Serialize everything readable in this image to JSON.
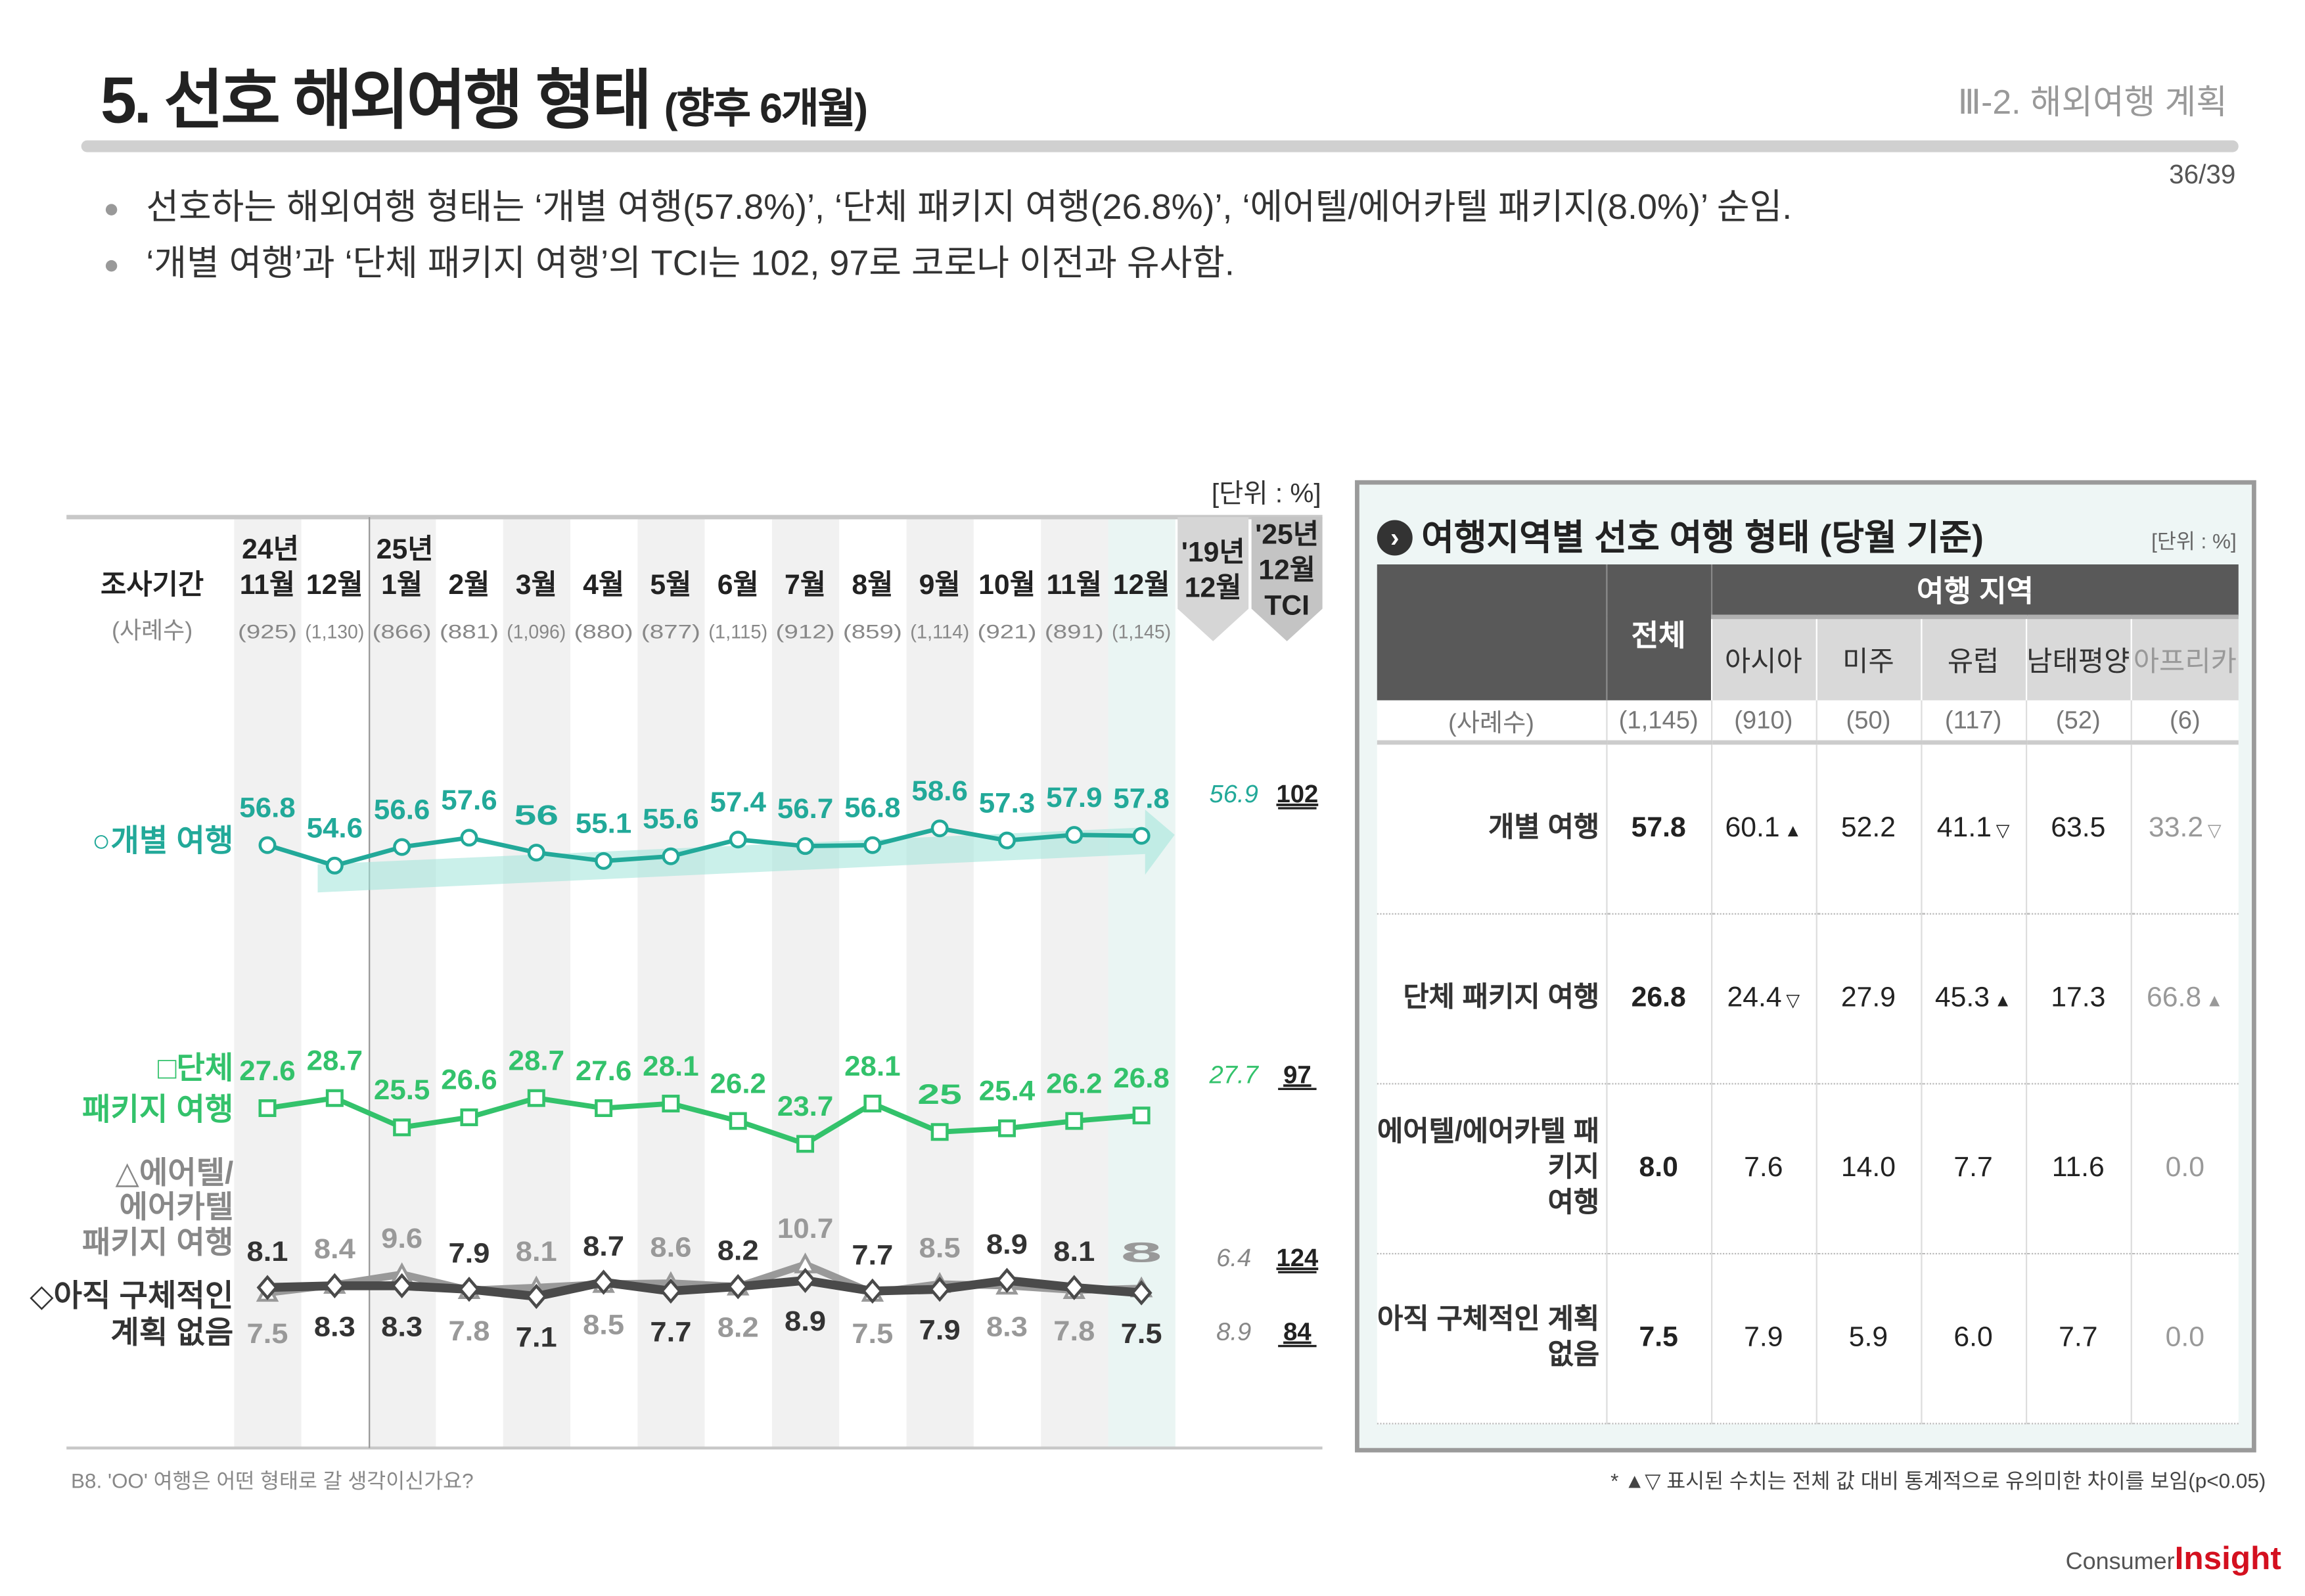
{
  "header": {
    "title": "5. 선호 해외여행 형태",
    "title_sub": "(향후 6개월)",
    "section": "Ⅲ-2. 해외여행 계획",
    "page": "36/39"
  },
  "bullets": [
    "선호하는 해외여행 형태는 ‘개별 여행(57.8%)’, ‘단체 패키지 여행(26.8%)’, ‘에어텔/에어카텔 패키지(8.0%)’ 순임.",
    "‘개별 여행’과 ‘단체 패키지 여행’의 TCI는 102, 97로 코로나 이전과 유사함."
  ],
  "chart_data": {
    "type": "line",
    "unit": "[단위 : %]",
    "row_label": "조사기간",
    "n_label": "(사례수)",
    "years": [
      "24년",
      "",
      "25년",
      "",
      "",
      "",
      "",
      "",
      "",
      "",
      "",
      "",
      "",
      ""
    ],
    "categories": [
      "11월",
      "12월",
      "1월",
      "2월",
      "3월",
      "4월",
      "5월",
      "6월",
      "7월",
      "8월",
      "9월",
      "10월",
      "11월",
      "12월"
    ],
    "n": [
      "(925)",
      "(1,130)",
      "(866)",
      "(881)",
      "(1,096)",
      "(880)",
      "(877)",
      "(1,115)",
      "(912)",
      "(859)",
      "(1,114)",
      "(921)",
      "(891)",
      "(1,145)"
    ],
    "ref_header": [
      "'19년",
      "12월"
    ],
    "tci_header": [
      "'25년",
      "12월",
      "TCI"
    ],
    "series": [
      {
        "name": "○개별 여행",
        "values": [
          56.8,
          54.6,
          56.6,
          57.6,
          56.0,
          55.1,
          55.6,
          57.4,
          56.7,
          56.8,
          58.6,
          57.3,
          57.9,
          57.8
        ],
        "ref_2019": "56.9",
        "tci": "102",
        "color": "#22a999",
        "marker": "circle"
      },
      {
        "name": "□단체 패키지 여행",
        "values": [
          27.6,
          28.7,
          25.5,
          26.6,
          28.7,
          27.6,
          28.1,
          26.2,
          23.7,
          28.1,
          25.0,
          25.4,
          26.2,
          26.8
        ],
        "ref_2019": "27.7",
        "tci": "97",
        "color": "#33c26b",
        "marker": "square"
      },
      {
        "name": "△에어텔/ 에어카텔 패키지 여행",
        "values": [
          7.5,
          8.4,
          9.6,
          7.8,
          8.1,
          8.5,
          8.6,
          8.2,
          10.7,
          7.5,
          8.5,
          8.3,
          7.8,
          8.0
        ],
        "ref_2019": "6.4",
        "tci": "124",
        "color": "#999999",
        "marker": "triangle"
      },
      {
        "name": "◇아직 구체적인 계획 없음",
        "values": [
          8.1,
          8.3,
          8.3,
          7.9,
          7.1,
          8.7,
          7.7,
          8.2,
          8.9,
          7.7,
          7.9,
          8.9,
          8.1,
          7.5
        ],
        "ref_2019": "8.9",
        "tci": "84",
        "color": "#4a4a4a",
        "marker": "diamond"
      }
    ],
    "question": "B8. 'OO' 여행은 어떤 형태로 갈 생각이신가요?"
  },
  "panel": {
    "title": "여행지역별 선호 여행 형태 (당월 기준)",
    "unit": "[단위 : %]",
    "total": "전체",
    "region_group": "여행 지역",
    "regions": [
      "아시아",
      "미주",
      "유럽",
      "남태평양",
      "아프리카"
    ],
    "n_label": "(사례수)",
    "n": [
      "(1,145)",
      "(910)",
      "(50)",
      "(117)",
      "(52)",
      "(6)"
    ],
    "rows": [
      {
        "label": "개별 여행",
        "values": [
          "57.8",
          "60.1",
          "52.2",
          "41.1",
          "63.5",
          "33.2"
        ],
        "marks": [
          "",
          "▲",
          "",
          "▽",
          "",
          "▽"
        ]
      },
      {
        "label": "단체 패키지 여행",
        "values": [
          "26.8",
          "24.4",
          "27.9",
          "45.3",
          "17.3",
          "66.8"
        ],
        "marks": [
          "",
          "▽",
          "",
          "▲",
          "",
          "▲"
        ]
      },
      {
        "label": "에어텔/에어카텔 패키지 여행",
        "values": [
          "8.0",
          "7.6",
          "14.0",
          "7.7",
          "11.6",
          "0.0"
        ],
        "marks": [
          "",
          "",
          "",
          "",
          "",
          ""
        ]
      },
      {
        "label": "아직 구체적인 계획 없음",
        "values": [
          "7.5",
          "7.9",
          "5.9",
          "6.0",
          "7.7",
          "0.0"
        ],
        "marks": [
          "",
          "",
          "",
          "",
          "",
          ""
        ]
      }
    ],
    "footnote": "* ▲▽ 표시된 수치는 전체 값 대비 통계적으로 유의미한 차이를 보임(p<0.05)"
  },
  "logo": {
    "a": "Consumer",
    "b": "Insight"
  }
}
